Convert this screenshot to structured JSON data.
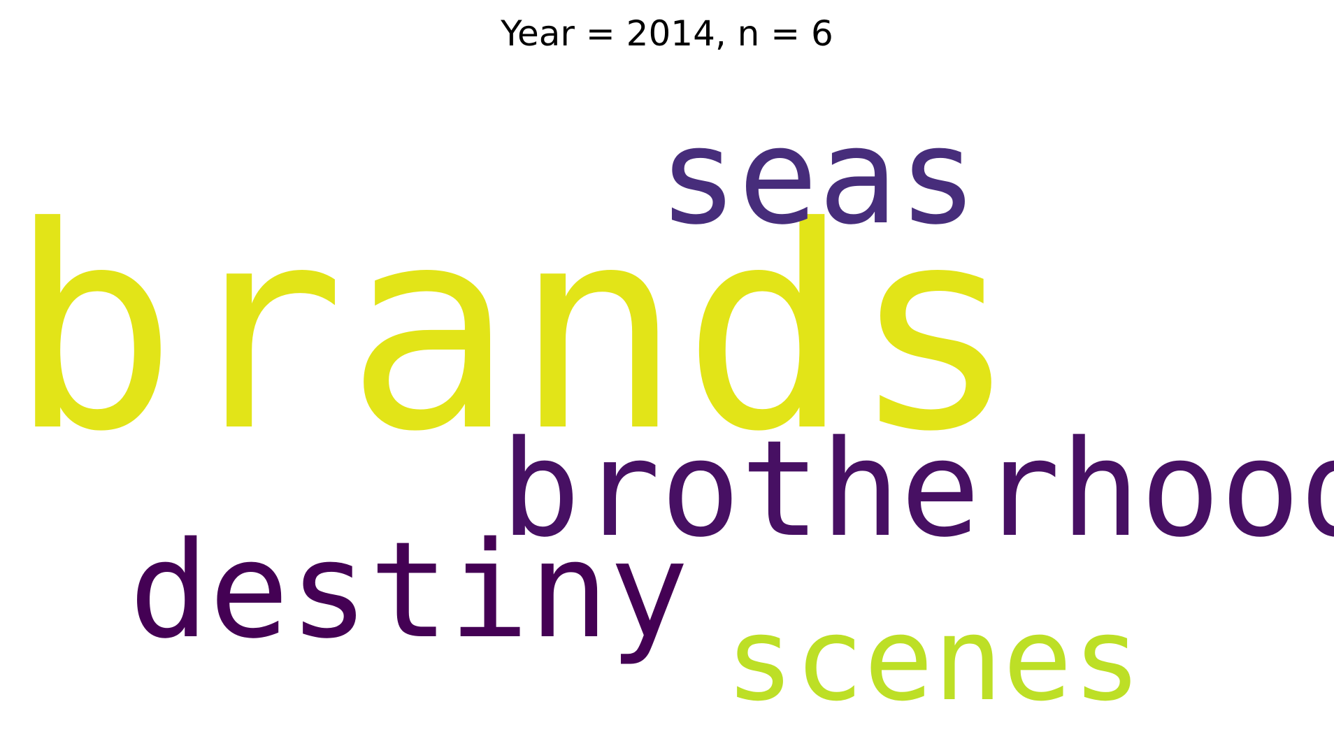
{
  "chart_data": {
    "type": "wordcloud",
    "title": "Year = 2014, n = 6",
    "words": [
      {
        "text": "brands",
        "weight": 1.0,
        "color": "#e2e418"
      },
      {
        "text": "seas",
        "weight": 0.5,
        "color": "#472d7b"
      },
      {
        "text": "brotherhood",
        "weight": 0.5,
        "color": "#471063"
      },
      {
        "text": "destiny",
        "weight": 0.5,
        "color": "#440154"
      },
      {
        "text": "scenes",
        "weight": 0.45,
        "color": "#bddf26"
      }
    ]
  }
}
